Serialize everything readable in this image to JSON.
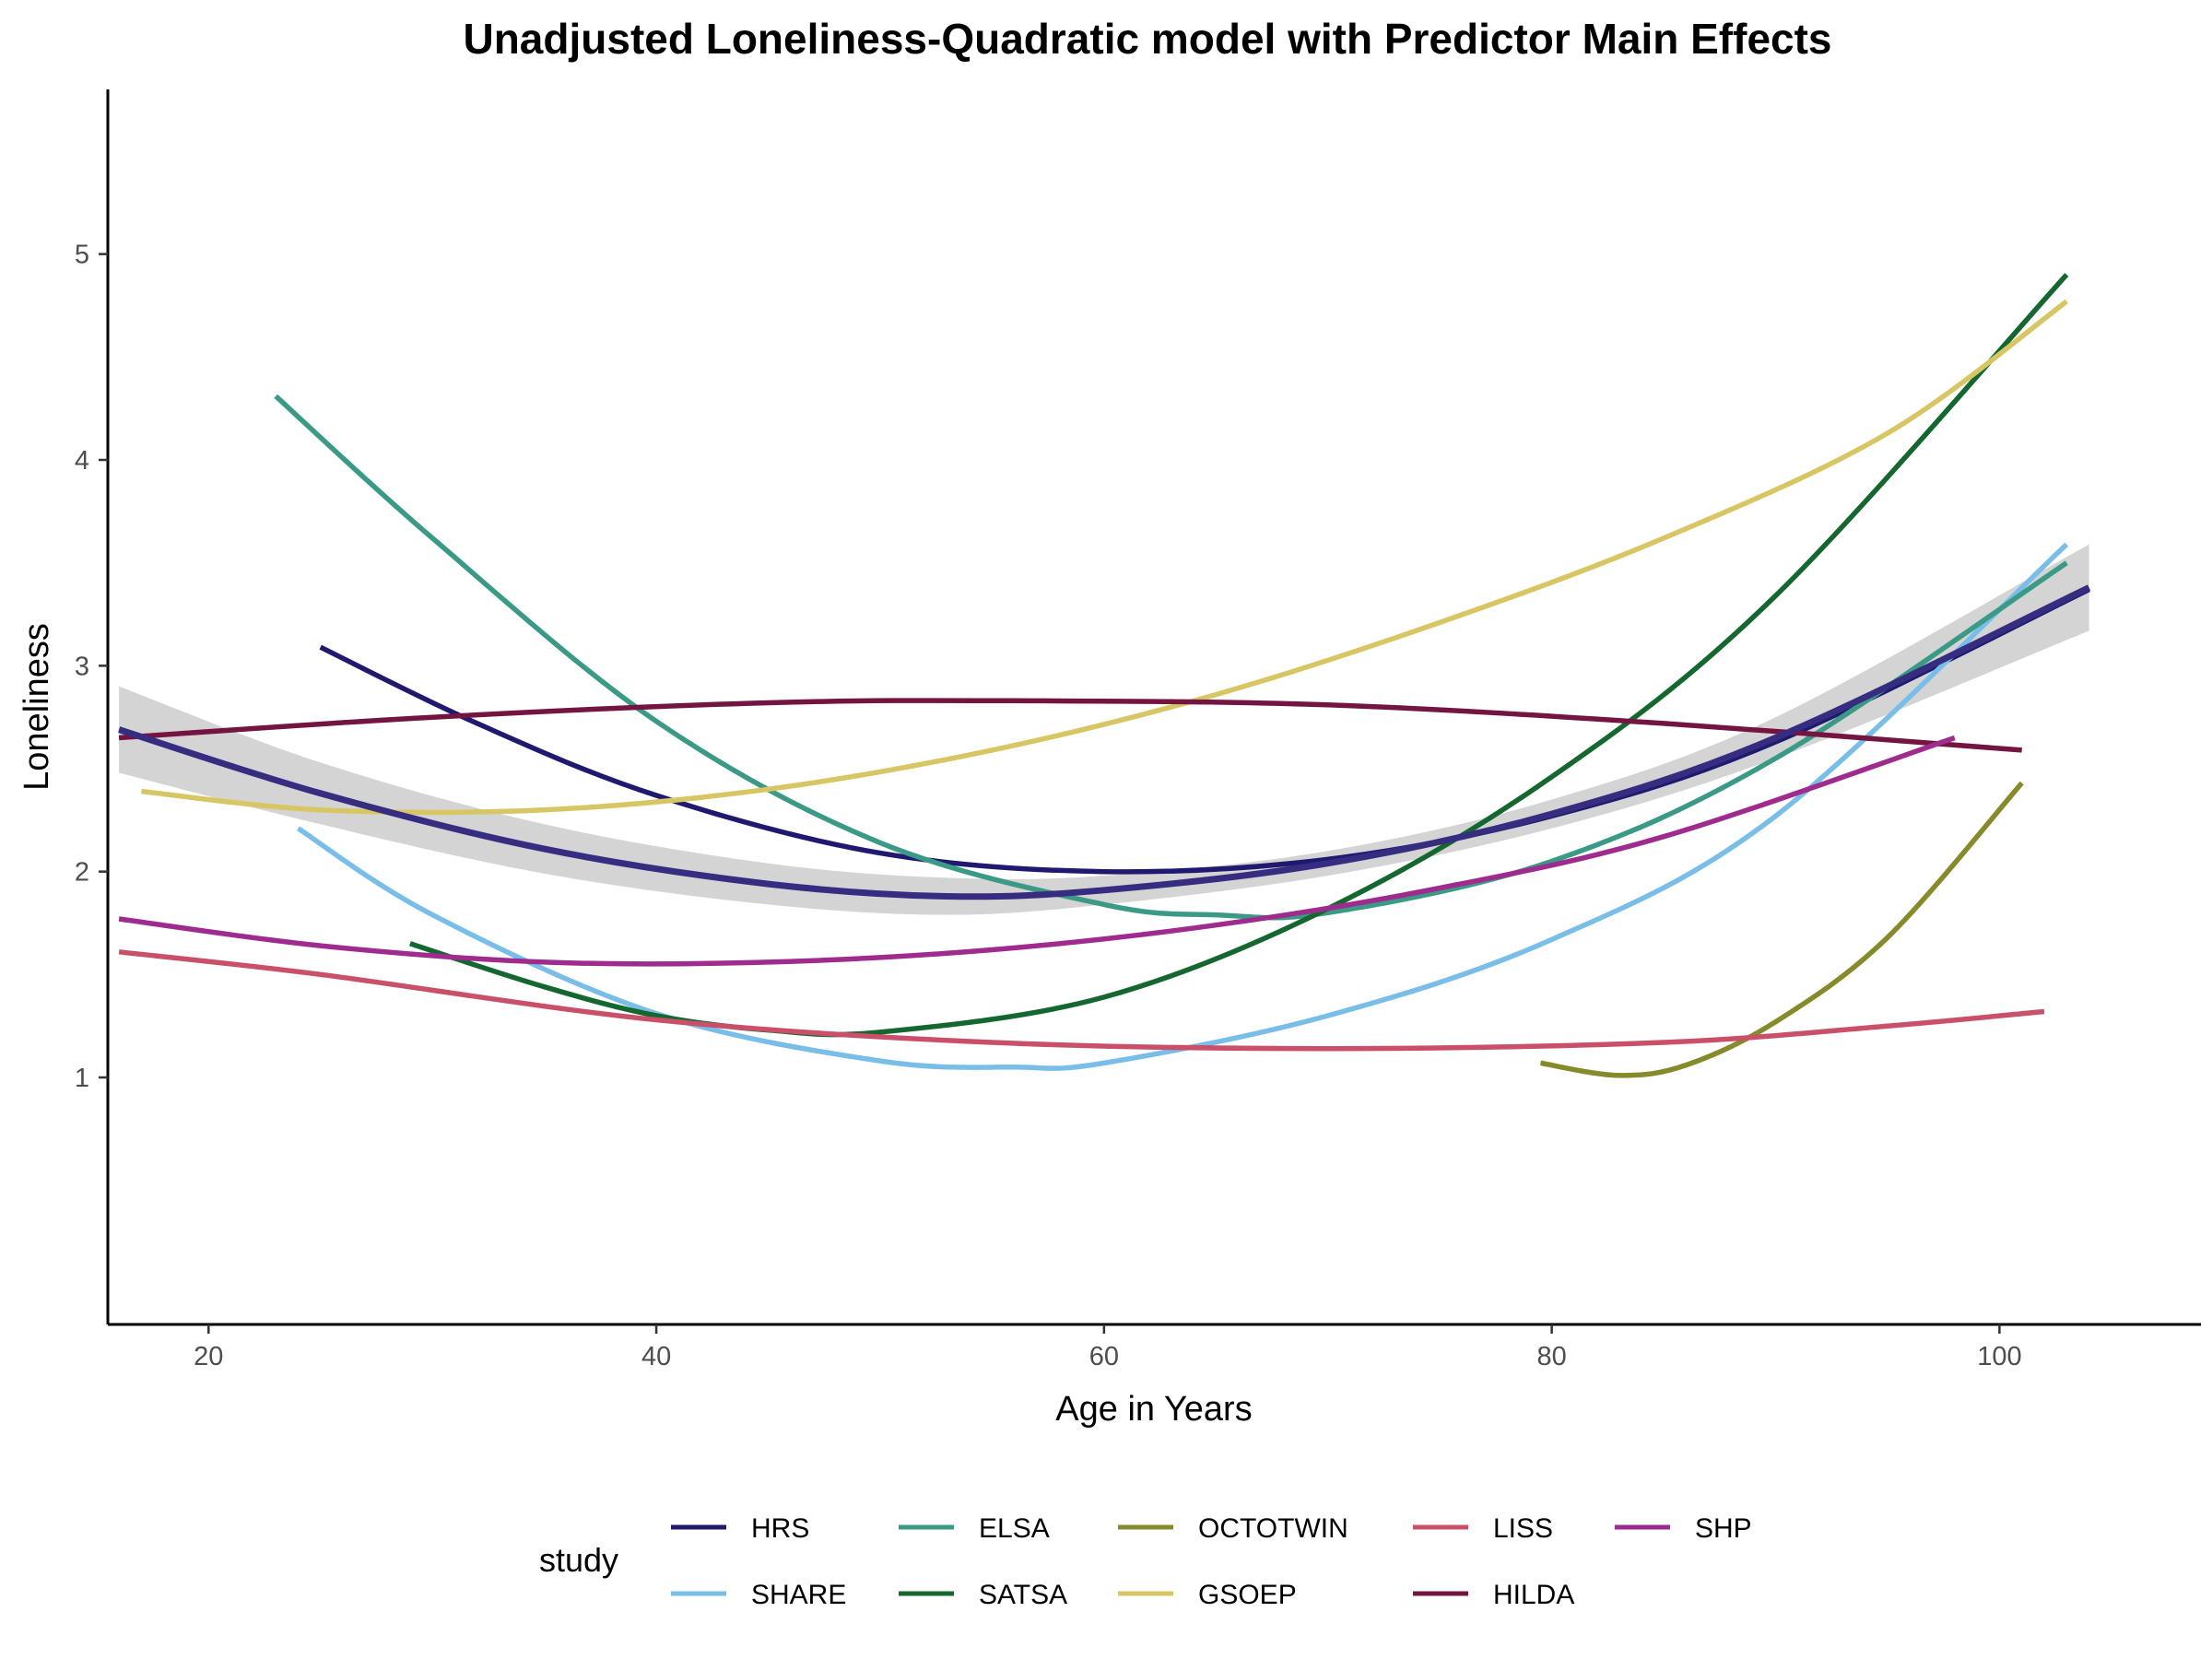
{
  "chart_data": {
    "type": "line",
    "title": "Unadjusted Loneliness-Quadratic model with Predictor Main Effects",
    "xlabel": "Age in Years",
    "ylabel": "Loneliness",
    "xlim": [
      15.5,
      109
    ],
    "ylim": [
      -0.2,
      5.8
    ],
    "xticks": [
      20,
      40,
      60,
      80,
      100
    ],
    "yticks": [
      1,
      2,
      3,
      4,
      5
    ],
    "grid": false,
    "legend": {
      "title": "study",
      "position": "bottom",
      "columns": 5,
      "rows": 2
    },
    "series": [
      {
        "name": "HRS",
        "color": "#1f1a70",
        "x": [
          25,
          32,
          40,
          50,
          60,
          70,
          80,
          90,
          104
        ],
        "y": [
          3.09,
          2.72,
          2.37,
          2.09,
          2.0,
          2.06,
          2.27,
          2.63,
          3.37
        ]
      },
      {
        "name": "SHARE",
        "color": "#79bee8",
        "x": [
          24,
          30,
          40,
          50,
          56,
          60,
          70,
          80,
          90,
          103
        ],
        "y": [
          2.21,
          1.79,
          1.31,
          1.08,
          1.05,
          1.07,
          1.3,
          1.67,
          2.27,
          3.59
        ]
      },
      {
        "name": "ELSA",
        "color": "#3a9a86",
        "x": [
          23,
          30,
          40,
          50,
          60,
          65,
          70,
          80,
          90,
          103
        ],
        "y": [
          4.31,
          3.62,
          2.73,
          2.14,
          1.84,
          1.79,
          1.8,
          2.05,
          2.55,
          3.5
        ]
      },
      {
        "name": "SATSA",
        "color": "#14672e",
        "x": [
          29,
          35,
          40,
          45,
          50,
          60,
          70,
          80,
          90,
          103
        ],
        "y": [
          1.65,
          1.44,
          1.3,
          1.23,
          1.22,
          1.39,
          1.82,
          2.46,
          3.34,
          4.9
        ]
      },
      {
        "name": "OCTOTWIN",
        "color": "#858a2a",
        "x": [
          79.5,
          83,
          86,
          90,
          95,
          101
        ],
        "y": [
          1.07,
          1.01,
          1.06,
          1.27,
          1.68,
          2.43
        ]
      },
      {
        "name": "GSOEP",
        "color": "#d8c664",
        "x": [
          17,
          25,
          35,
          45,
          55,
          65,
          75,
          85,
          95,
          103
        ],
        "y": [
          2.39,
          2.3,
          2.3,
          2.4,
          2.59,
          2.86,
          3.21,
          3.62,
          4.13,
          4.77
        ]
      },
      {
        "name": "LISS",
        "color": "#c95068",
        "x": [
          16,
          25,
          40,
          55,
          70,
          85,
          95,
          102
        ],
        "y": [
          1.61,
          1.5,
          1.28,
          1.17,
          1.14,
          1.17,
          1.25,
          1.32
        ]
      },
      {
        "name": "HILDA",
        "color": "#731441",
        "x": [
          16,
          30,
          45,
          56,
          70,
          85,
          101
        ],
        "y": [
          2.65,
          2.75,
          2.82,
          2.83,
          2.81,
          2.72,
          2.59
        ]
      },
      {
        "name": "SHP",
        "color": "#a02b8f",
        "x": [
          16,
          25,
          35,
          45,
          55,
          65,
          75,
          85,
          98
        ],
        "y": [
          1.77,
          1.64,
          1.56,
          1.56,
          1.62,
          1.74,
          1.92,
          2.17,
          2.65
        ]
      }
    ],
    "overall_fit": {
      "color": "#362d80",
      "band_color": "#cccccc",
      "x": [
        16,
        25,
        35,
        45,
        53,
        60,
        70,
        80,
        90,
        104
      ],
      "y": [
        2.69,
        2.38,
        2.11,
        1.94,
        1.88,
        1.91,
        2.04,
        2.28,
        2.65,
        3.38
      ],
      "lower": [
        2.48,
        2.23,
        1.99,
        1.84,
        1.79,
        1.84,
        1.98,
        2.21,
        2.55,
        3.17
      ],
      "upper": [
        2.9,
        2.53,
        2.23,
        2.04,
        1.97,
        1.98,
        2.1,
        2.35,
        2.75,
        3.59
      ]
    }
  }
}
